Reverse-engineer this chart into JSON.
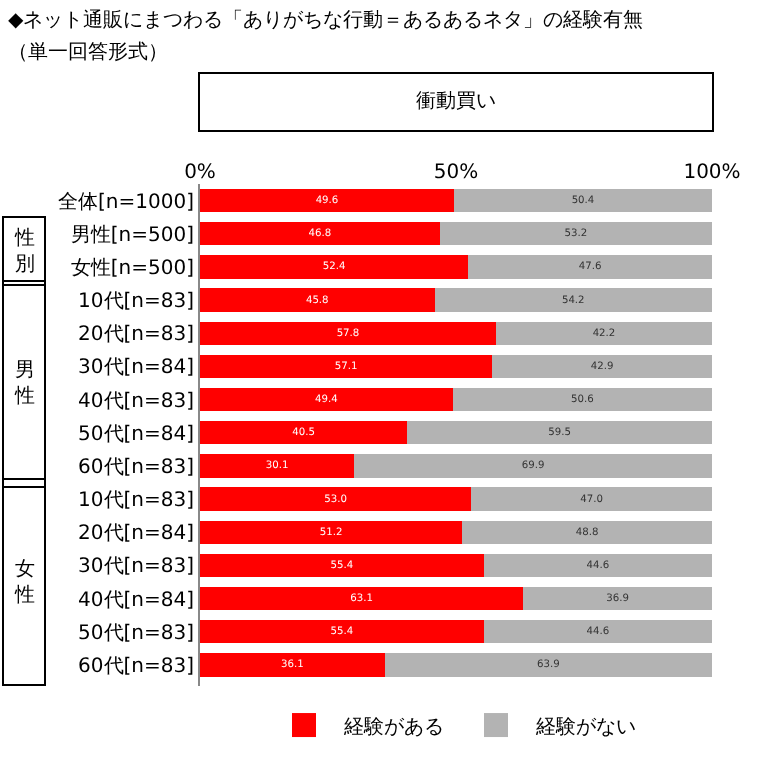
{
  "chart_data": {
    "type": "bar",
    "orientation": "horizontal",
    "stacked": true,
    "title": "◆ネット通販にまつわる「ありがちな行動＝あるあるネタ」の経験有無",
    "subtitle": "（単一回答形式）",
    "xlabel": "衝動買い",
    "categories": [
      "全体[n=1000]",
      "男性[n=500]",
      "女性[n=500]",
      "10代[n=83]",
      "20代[n=83]",
      "30代[n=84]",
      "40代[n=83]",
      "50代[n=84]",
      "60代[n=83]",
      "10代[n=83]",
      "20代[n=84]",
      "30代[n=83]",
      "40代[n=84]",
      "50代[n=83]",
      "60代[n=83]"
    ],
    "series": [
      {
        "name": "経験がある",
        "color": "#ff0000",
        "values": [
          49.6,
          46.8,
          52.4,
          45.8,
          57.8,
          57.1,
          49.4,
          40.5,
          30.1,
          53.0,
          51.2,
          55.4,
          63.1,
          55.4,
          36.1
        ],
        "value_labels": [
          "49.6",
          "46.8",
          "52.4",
          "45.8",
          "57.8",
          "57.1",
          "49.4",
          "40.5",
          "30.1",
          "53.0",
          "51.2",
          "55.4",
          "63.1",
          "55.4",
          "36.1"
        ]
      },
      {
        "name": "経験がない",
        "color": "#b3b3b3",
        "values": [
          50.4,
          53.2,
          47.6,
          54.2,
          42.2,
          42.9,
          50.6,
          59.5,
          69.9,
          47.0,
          48.8,
          44.6,
          36.9,
          44.6,
          63.9
        ],
        "value_labels": [
          "50.4",
          "53.2",
          "47.6",
          "54.2",
          "42.2",
          "42.9",
          "50.6",
          "59.5",
          "69.9",
          "47.0",
          "48.8",
          "44.6",
          "36.9",
          "44.6",
          "63.9"
        ]
      }
    ],
    "xlim": [
      0,
      100
    ],
    "xticks": [
      {
        "value": 0,
        "label": "0%"
      },
      {
        "value": 50,
        "label": "50%"
      },
      {
        "value": 100,
        "label": "100%"
      }
    ],
    "legend": "bottom",
    "annotations": [
      "性別",
      "男性",
      "女性"
    ]
  }
}
